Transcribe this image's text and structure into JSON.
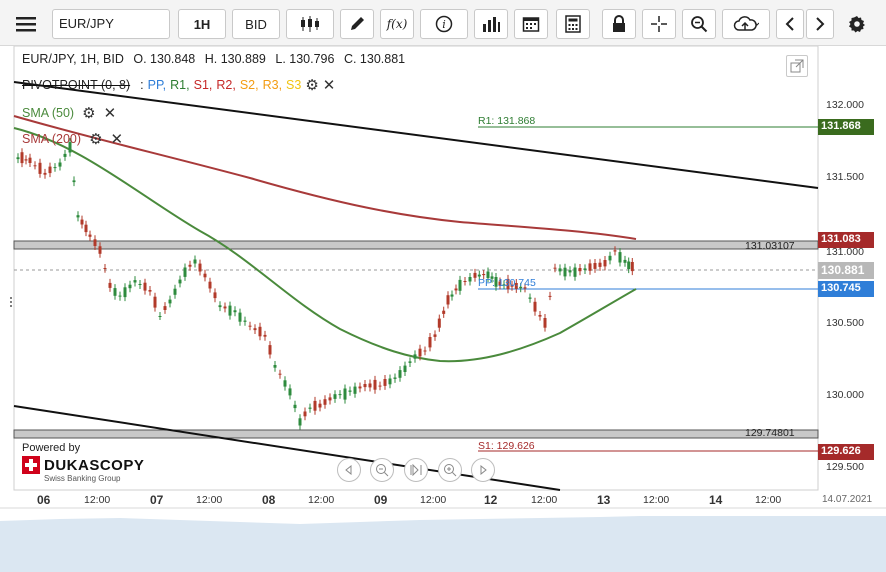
{
  "toolbar": {
    "symbol": "EUR/JPY",
    "timeframe": "1H",
    "price_type": "BID",
    "func_label": "f(x)"
  },
  "info": {
    "instrument": "EUR/JPY, 1H, BID",
    "open": "O. 130.848",
    "high": "H. 130.889",
    "low": "L. 130.796",
    "close": "C. 130.881"
  },
  "pivot": {
    "name": "PIVOTPOINT (0, 8)",
    "sep": ":",
    "levels": [
      {
        "label": "PP,",
        "color": "#2f7ed8"
      },
      {
        "label": "R1,",
        "color": "#2e7d32"
      },
      {
        "label": "S1,",
        "color": "#c62828"
      },
      {
        "label": "R2,",
        "color": "#c62828"
      },
      {
        "label": "S2,",
        "color": "#f39c12"
      },
      {
        "label": "R3,",
        "color": "#f39c12"
      },
      {
        "label": "S3",
        "color": "#f1c40f"
      }
    ]
  },
  "indicators": {
    "sma50": {
      "label": "SMA (50)",
      "color": "#4a8a3c"
    },
    "sma200": {
      "label": "SMA (200)",
      "color": "#a83a3a"
    }
  },
  "y_axis": {
    "ticks": [
      "132.000",
      "131.500",
      "131.000",
      "130.500",
      "130.000",
      "129.500"
    ],
    "top_value": 132.0,
    "bottom_value": 129.5
  },
  "price_tags": [
    {
      "value": "131.868",
      "color": "#3a6b1e"
    },
    {
      "value": "131.083",
      "color": "#a52a2a"
    },
    {
      "value": "130.881",
      "color": "#b8b8b8"
    },
    {
      "value": "130.745",
      "color": "#2f7ed8"
    },
    {
      "value": "129.626",
      "color": "#a52a2a"
    }
  ],
  "levels": {
    "r1": "R1: 131.868",
    "pp": "PP: 130.745",
    "s1": "S1: 129.626",
    "upper_channel": "131.03107",
    "lower_channel": "129.74801"
  },
  "x_axis": {
    "labels": [
      "06",
      "12:00",
      "07",
      "12:00",
      "08",
      "12:00",
      "09",
      "12:00",
      "12",
      "12:00",
      "13",
      "12:00",
      "14",
      "12:00",
      "14.07.2021"
    ]
  },
  "branding": {
    "powered": "Powered by",
    "name": "DUKASCOPY",
    "sub": "Swiss Banking Group"
  }
}
